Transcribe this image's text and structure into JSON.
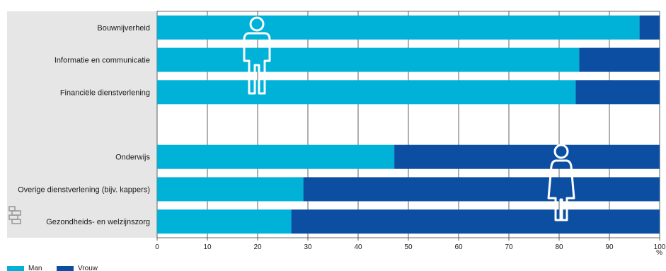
{
  "chart_data": {
    "type": "bar",
    "stacked": true,
    "orientation": "horizontal",
    "categories": [
      "Bouwnijverheid",
      "Informatie en communicatie",
      "Financiële dienstverlening",
      "",
      "Onderwijs",
      "Overige dienstverlening (bijv. kappers)",
      "Gezondheids- en welzijnszorg"
    ],
    "series": [
      {
        "name": "Man",
        "color": "#00b1d8",
        "values": [
          96,
          84,
          83.3,
          null,
          47.2,
          29.1,
          26.7
        ]
      },
      {
        "name": "Vrouw",
        "color": "#0b4ea2",
        "values": [
          4,
          16,
          16.7,
          null,
          52.8,
          70.9,
          73.3
        ]
      }
    ],
    "xlim": [
      0,
      100
    ],
    "xticks": [
      0,
      10,
      20,
      30,
      40,
      50,
      60,
      70,
      80,
      90,
      100
    ],
    "xunit": "%",
    "grid": true,
    "legend_position": "bottom-left",
    "icons": [
      "man-icon",
      "woman-icon",
      "cbs-logo-icon"
    ],
    "colors": {
      "label_panel": "#e6e6e6",
      "grid": "#3a3a3a"
    }
  }
}
